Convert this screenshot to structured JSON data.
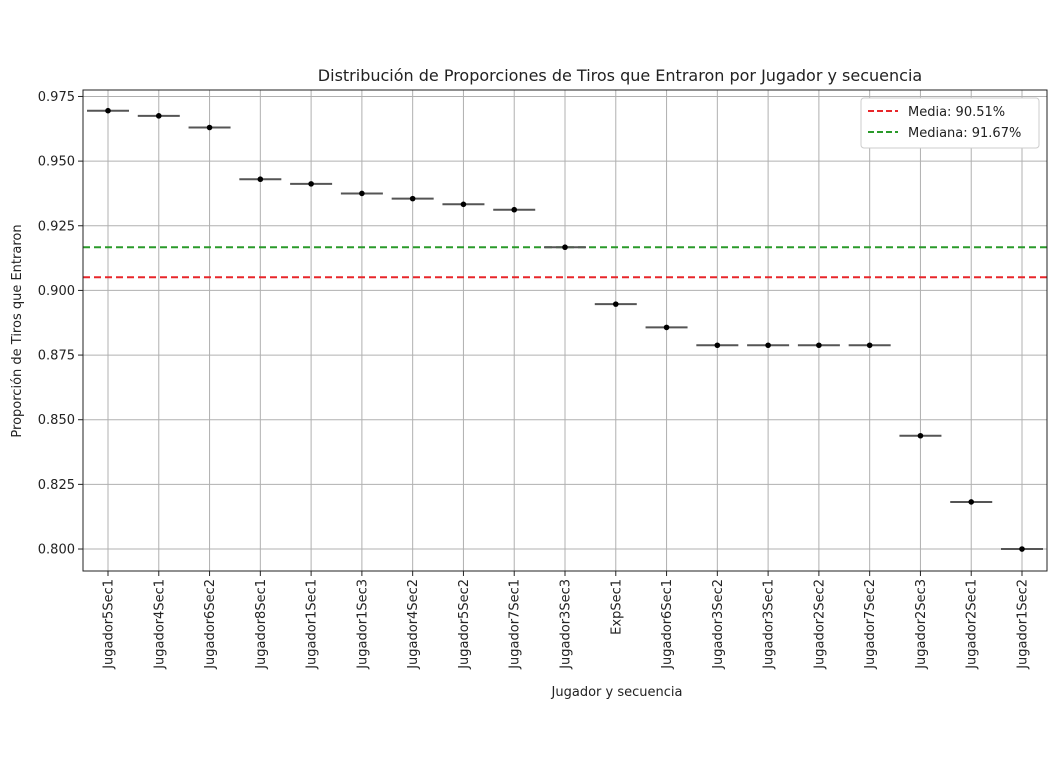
{
  "chart_data": {
    "type": "box",
    "title": "Distribución de Proporciones de Tiros que Entraron por Jugador y secuencia",
    "xlabel": "Jugador  y secuencia",
    "ylabel": "Proporción de Tiros que Entraron",
    "categories": [
      "Jugador5Sec1",
      "Jugador4Sec1",
      "Jugador6Sec2",
      "Jugador8Sec1",
      "Jugador1Sec1",
      "Jugador1Sec3",
      "Jugador4Sec2",
      "Jugador5Sec2",
      "Jugador7Sec1",
      "Jugador3Sec3",
      "ExpSec1",
      "Jugador6Sec1",
      "Jugador3Sec2",
      "Jugador3Sec1",
      "Jugador2Sec2",
      "Jugador7Sec2",
      "Jugador2Sec3",
      "Jugador2Sec1",
      "Jugador1Sec2"
    ],
    "values": [
      0.9695,
      0.9675,
      0.963,
      0.943,
      0.9412,
      0.9375,
      0.9355,
      0.9333,
      0.9312,
      0.9167,
      0.8947,
      0.8857,
      0.8788,
      0.8788,
      0.8788,
      0.8788,
      0.8438,
      0.8182,
      0.8
    ],
    "ylim": [
      0.7915,
      0.9775
    ],
    "yticks": [
      "0.800",
      "0.825",
      "0.850",
      "0.875",
      "0.900",
      "0.925",
      "0.950",
      "0.975"
    ],
    "ytick_values": [
      0.8,
      0.825,
      0.85,
      0.875,
      0.9,
      0.925,
      0.95,
      0.975
    ],
    "reference_lines": [
      {
        "label": "Media: 90.51%",
        "value": 0.9051,
        "color": "#e8262a",
        "style": "dashed"
      },
      {
        "label": "Mediana: 91.67%",
        "value": 0.9167,
        "color": "#2a9a2a",
        "style": "dashed"
      }
    ],
    "grid": true,
    "legend_position": "top-right"
  }
}
